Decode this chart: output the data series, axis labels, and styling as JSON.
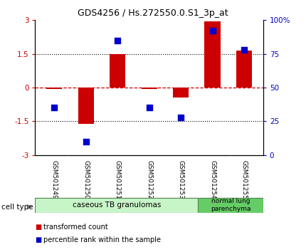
{
  "title": "GDS4256 / Hs.272550.0.S1_3p_at",
  "samples": [
    "GSM501249",
    "GSM501250",
    "GSM501251",
    "GSM501252",
    "GSM501253",
    "GSM501254",
    "GSM501255"
  ],
  "transformed_counts": [
    -0.07,
    -1.6,
    1.5,
    -0.05,
    -0.45,
    2.95,
    1.65
  ],
  "percentile_ranks": [
    35,
    10,
    85,
    35,
    28,
    92,
    78
  ],
  "ylim_left": [
    -3,
    3
  ],
  "ylim_right": [
    0,
    100
  ],
  "yticks_left": [
    -3,
    -1.5,
    0,
    1.5,
    3
  ],
  "yticks_left_labels": [
    "-3",
    "-1.5",
    "0",
    "1.5",
    "3"
  ],
  "yticks_right": [
    0,
    25,
    50,
    75,
    100
  ],
  "yticks_right_labels": [
    "0",
    "25",
    "50",
    "75",
    "100%"
  ],
  "bar_color": "#cc0000",
  "dot_color": "#0000cc",
  "hline_color": "#cc0000",
  "dotline_color": "black",
  "cell_type_group1_label": "caseous TB granulomas",
  "cell_type_group1_samples": 5,
  "cell_type_group2_label": "normal lung\nparenchyma",
  "cell_type_group2_samples": 2,
  "cell_type_group1_color": "#c8f5c8",
  "cell_type_group2_color": "#66cc66",
  "legend_bar_label": "transformed count",
  "legend_dot_label": "percentile rank within the sample",
  "cell_type_label": "cell type",
  "bar_width": 0.5,
  "dot_size": 30,
  "bg_color": "#ffffff",
  "tick_area_bg": "#cccccc",
  "grid_color": "#cccccc"
}
